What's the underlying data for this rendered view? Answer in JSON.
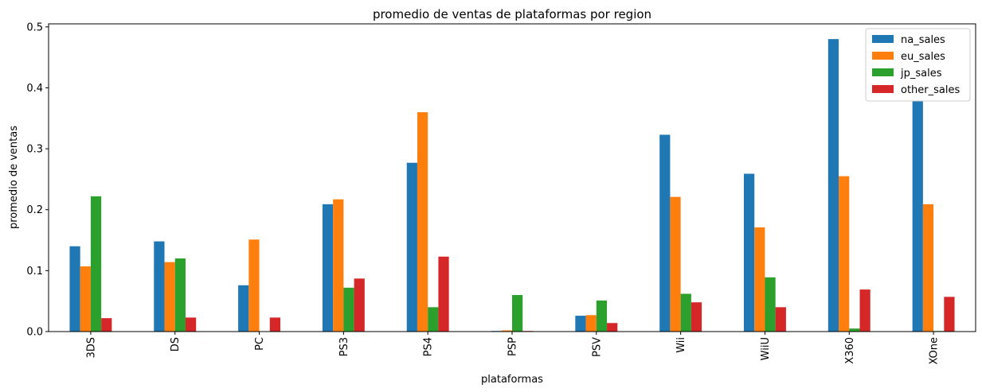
{
  "chart_data": {
    "type": "bar",
    "title": "promedio de ventas de plataformas por region",
    "xlabel": "plataformas",
    "ylabel": "promedio de ventas",
    "categories": [
      "3DS",
      "DS",
      "PC",
      "PS3",
      "PS4",
      "PSP",
      "PSV",
      "Wii",
      "WiiU",
      "X360",
      "XOne"
    ],
    "series": [
      {
        "name": "na_sales",
        "color": "#1f77b4",
        "values": [
          0.14,
          0.148,
          0.076,
          0.209,
          0.277,
          0.001,
          0.026,
          0.323,
          0.259,
          0.48,
          0.378
        ]
      },
      {
        "name": "eu_sales",
        "color": "#ff7f0e",
        "values": [
          0.107,
          0.114,
          0.151,
          0.217,
          0.36,
          0.002,
          0.027,
          0.221,
          0.171,
          0.255,
          0.209
        ]
      },
      {
        "name": "jp_sales",
        "color": "#2ca02c",
        "values": [
          0.222,
          0.12,
          0.0,
          0.072,
          0.04,
          0.06,
          0.051,
          0.062,
          0.089,
          0.005,
          0.001
        ]
      },
      {
        "name": "other_sales",
        "color": "#d62728",
        "values": [
          0.022,
          0.023,
          0.023,
          0.087,
          0.123,
          0.001,
          0.014,
          0.048,
          0.04,
          0.069,
          0.057
        ]
      }
    ],
    "ylim": [
      0,
      0.505
    ],
    "yticks": [
      "0.0",
      "0.1",
      "0.2",
      "0.3",
      "0.4",
      "0.5"
    ],
    "ytick_values": [
      0,
      0.1,
      0.2,
      0.3,
      0.4,
      0.5
    ],
    "legend_position": "top-right",
    "grid": false
  }
}
